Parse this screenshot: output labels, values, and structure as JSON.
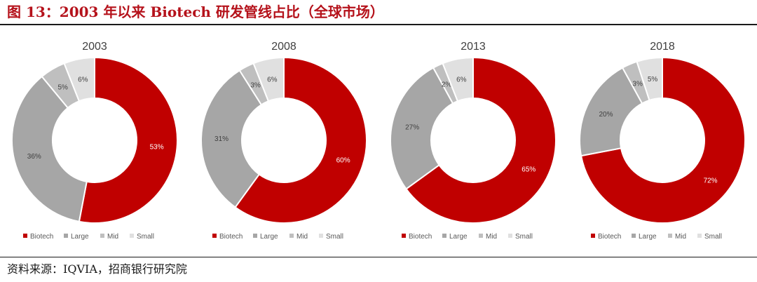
{
  "header": {
    "title": "图 13：2003 年以来 Biotech 研发管线占比（全球市场）"
  },
  "footer": {
    "source": "资料来源：IQVIA，招商银行研究院"
  },
  "colors": {
    "Biotech": "#c00000",
    "Large": "#a6a6a6",
    "Mid": "#bfbfbf",
    "Small": "#e0e0e0"
  },
  "chart_data": [
    {
      "type": "pie",
      "title": "2003",
      "categories": [
        "Biotech",
        "Large",
        "Mid",
        "Small"
      ],
      "values": [
        53,
        36,
        5,
        6
      ],
      "labels": [
        "53%",
        "36%",
        "5%",
        "6%"
      ],
      "legend": "bottom"
    },
    {
      "type": "pie",
      "title": "2008",
      "categories": [
        "Biotech",
        "Large",
        "Mid",
        "Small"
      ],
      "values": [
        60,
        31,
        3,
        6
      ],
      "labels": [
        "60%",
        "31%",
        "3%",
        "6%"
      ],
      "legend": "bottom"
    },
    {
      "type": "pie",
      "title": "2013",
      "categories": [
        "Biotech",
        "Large",
        "Mid",
        "Small"
      ],
      "values": [
        65,
        27,
        2,
        6
      ],
      "labels": [
        "65%",
        "27%",
        "2%",
        "6%"
      ],
      "legend": "bottom"
    },
    {
      "type": "pie",
      "title": "2018",
      "categories": [
        "Biotech",
        "Large",
        "Mid",
        "Small"
      ],
      "values": [
        72,
        20,
        3,
        5
      ],
      "labels": [
        "72%",
        "20%",
        "3%",
        "5%"
      ],
      "legend": "bottom"
    }
  ]
}
